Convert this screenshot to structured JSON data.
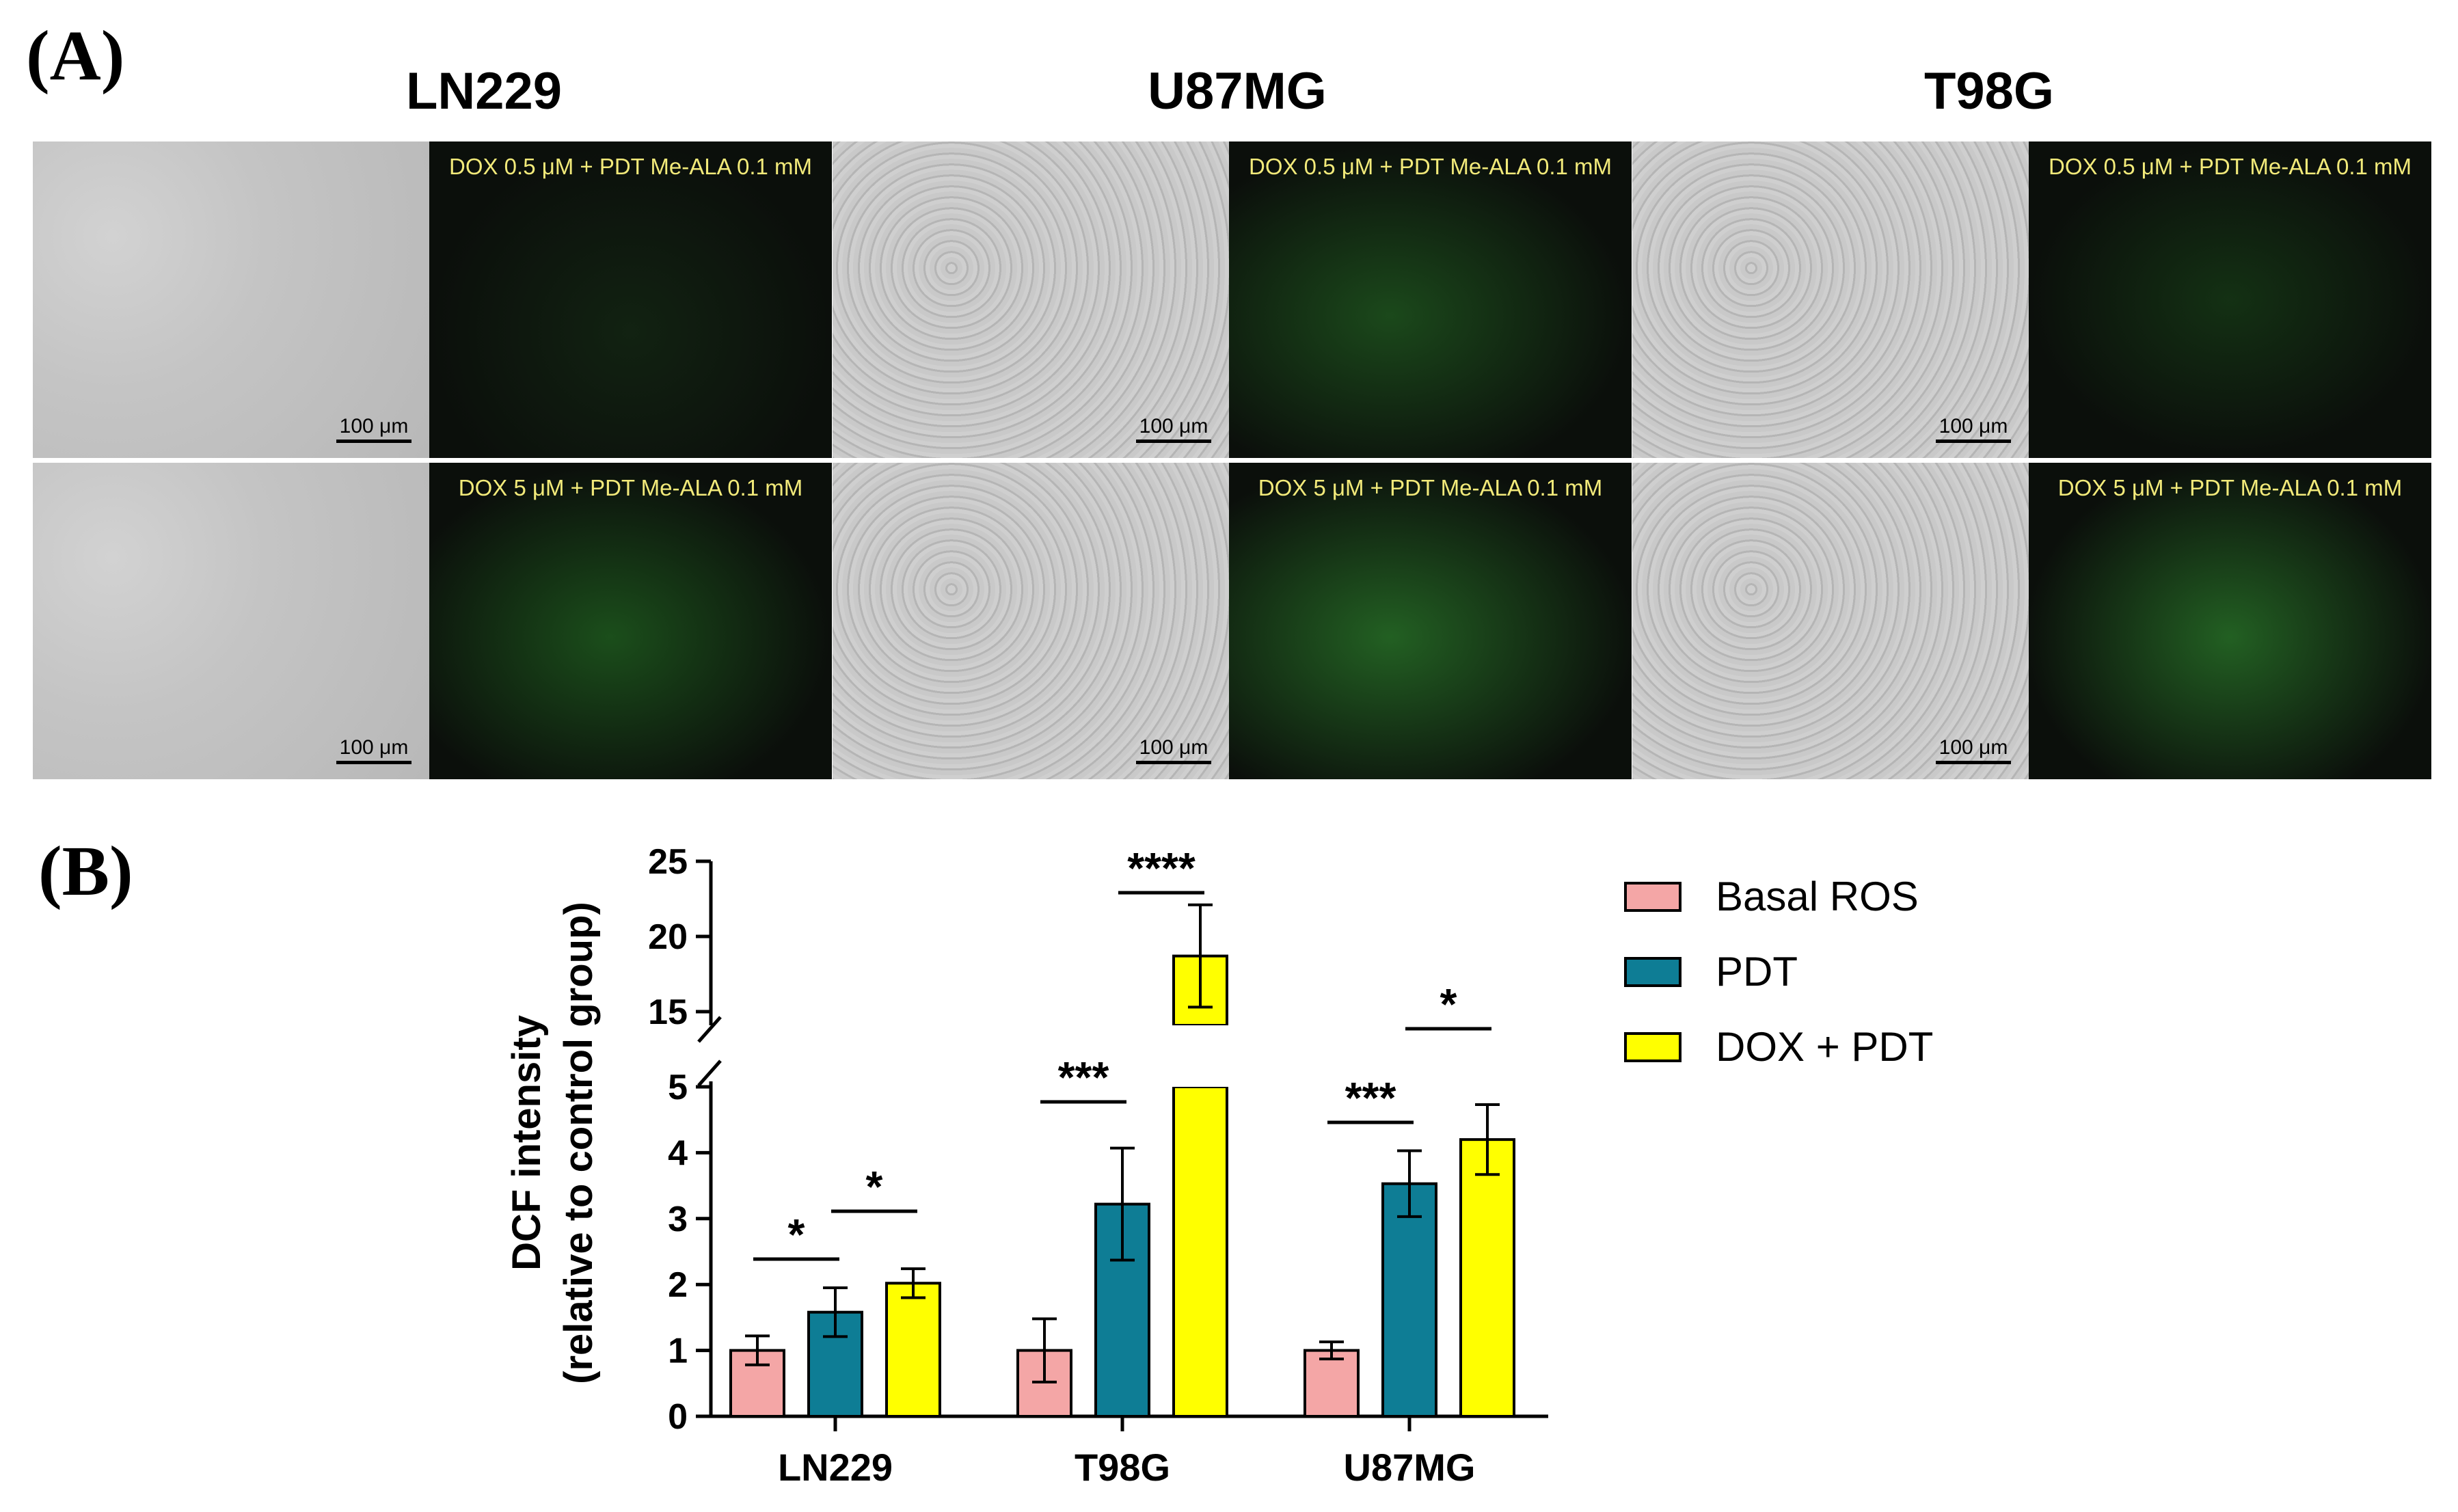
{
  "panelA": {
    "letter": "(A)",
    "cell_lines": [
      "LN229",
      "U87MG",
      "T98G"
    ],
    "labels_row1": [
      "DOX 0.5 μM + PDT Me-ALA 0.1 mM",
      "DOX 0.5 μM + PDT Me-ALA 0.1 mM",
      "DOX 0.5 μM + PDT Me-ALA 0.1 mM"
    ],
    "labels_row2": [
      "DOX 5 μM + PDT Me-ALA 0.1 mM",
      "DOX 5 μM + PDT Me-ALA 0.1 mM",
      "DOX 5 μM + PDT Me-ALA 0.1 mM"
    ],
    "scale_bar": "100 μm",
    "label_color": "#f2ea7a"
  },
  "panelB": {
    "letter": "(B)"
  },
  "chart_data": {
    "type": "bar",
    "categories": [
      "LN229",
      "T98G",
      "U87MG"
    ],
    "series": [
      {
        "name": "Basal ROS",
        "color": "#f4a6a6",
        "values": [
          1.0,
          1.0,
          1.0
        ],
        "errors": [
          0.22,
          0.48,
          0.13
        ]
      },
      {
        "name": "PDT",
        "color": "#0e7d95",
        "values": [
          1.58,
          3.22,
          3.53
        ],
        "errors": [
          0.37,
          0.85,
          0.5
        ]
      },
      {
        "name": "DOX + PDT",
        "color": "#ffff00",
        "values": [
          2.02,
          18.7,
          4.2
        ],
        "errors": [
          0.22,
          3.4,
          0.53
        ]
      }
    ],
    "ylabel": [
      "DCF intensity",
      "(relative to control group)"
    ],
    "xlabel": "",
    "y_axis_break": {
      "lower_range": [
        0,
        5
      ],
      "upper_range": [
        15,
        25
      ]
    },
    "yticks_lower": [
      "0",
      "1",
      "2",
      "3",
      "4",
      "5"
    ],
    "yticks_upper": [
      "15",
      "20",
      "25"
    ],
    "significance": [
      {
        "category": "LN229",
        "between": [
          "Basal ROS",
          "PDT"
        ],
        "label": "*"
      },
      {
        "category": "LN229",
        "between": [
          "PDT",
          "DOX + PDT"
        ],
        "label": "*"
      },
      {
        "category": "T98G",
        "between": [
          "Basal ROS",
          "PDT"
        ],
        "label": "***"
      },
      {
        "category": "T98G",
        "between": [
          "PDT",
          "DOX + PDT"
        ],
        "label": "****"
      },
      {
        "category": "U87MG",
        "between": [
          "Basal ROS",
          "PDT"
        ],
        "label": "***"
      },
      {
        "category": "U87MG",
        "between": [
          "PDT",
          "DOX + PDT"
        ],
        "label": "*"
      }
    ],
    "legend_position": "top-right",
    "grid": false
  }
}
